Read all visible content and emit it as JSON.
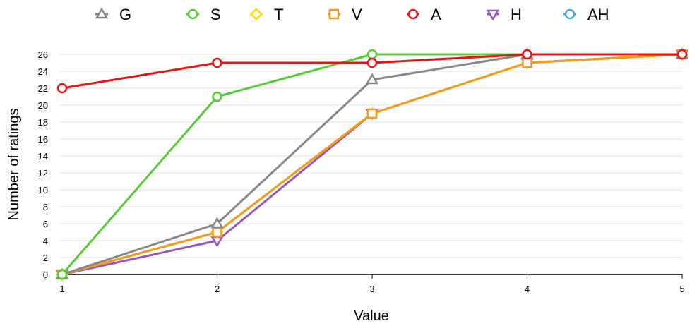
{
  "chart_data": {
    "type": "line",
    "title": "",
    "xlabel": "Value",
    "ylabel": "Number of ratings",
    "x": [
      1,
      2,
      3,
      4,
      5
    ],
    "xlim": [
      1,
      5
    ],
    "ylim": [
      0,
      26
    ],
    "yticks": [
      0,
      2,
      4,
      6,
      8,
      10,
      12,
      14,
      16,
      18,
      20,
      22,
      24,
      26
    ],
    "grid": true,
    "legend_position": "top",
    "series": [
      {
        "name": "G",
        "color": "#888888",
        "marker": "triangle-up",
        "values": [
          0,
          6,
          23,
          26,
          26
        ]
      },
      {
        "name": "S",
        "color": "#55cc33",
        "marker": "circle",
        "values": [
          0,
          21,
          26,
          26,
          26
        ]
      },
      {
        "name": "T",
        "color": "#ffdd00",
        "marker": "diamond",
        "values": [
          0,
          5,
          19,
          25,
          26
        ]
      },
      {
        "name": "V",
        "color": "#f59a1b",
        "marker": "square",
        "values": [
          0,
          5,
          19,
          25,
          26
        ]
      },
      {
        "name": "A",
        "color": "#ee1111",
        "marker": "circle",
        "values": [
          22,
          25,
          25,
          26,
          26
        ]
      },
      {
        "name": "H",
        "color": "#9955bb",
        "marker": "triangle-down",
        "values": [
          0,
          4,
          19,
          25,
          26
        ]
      },
      {
        "name": "AH",
        "color": "#44aadd",
        "marker": "circle",
        "values": [
          0,
          5,
          19,
          25,
          26
        ]
      }
    ],
    "draw_order": [
      "AH",
      "H",
      "T",
      "V",
      "G",
      "S",
      "A"
    ]
  }
}
